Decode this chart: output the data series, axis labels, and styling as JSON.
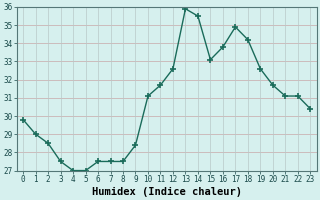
{
  "x": [
    0,
    1,
    2,
    3,
    4,
    5,
    6,
    7,
    8,
    9,
    10,
    11,
    12,
    13,
    14,
    15,
    16,
    17,
    18,
    19,
    20,
    21,
    22,
    23
  ],
  "y": [
    29.8,
    29.0,
    28.5,
    27.5,
    27.0,
    27.0,
    27.5,
    27.5,
    27.5,
    28.4,
    31.1,
    31.7,
    32.6,
    35.9,
    35.5,
    33.1,
    33.8,
    34.9,
    34.2,
    32.6,
    31.7,
    31.1,
    31.1,
    30.4
  ],
  "line_color": "#1a6b5a",
  "marker": "+",
  "markersize": 4,
  "bg_color": "#d6f0ee",
  "grid_color_h": "#c8a8a8",
  "grid_color_v": "#b8c8c8",
  "xlabel": "Humidex (Indice chaleur)",
  "ylim": [
    27,
    36
  ],
  "yticks": [
    27,
    28,
    29,
    30,
    31,
    32,
    33,
    34,
    35,
    36
  ],
  "xticks": [
    0,
    1,
    2,
    3,
    4,
    5,
    6,
    7,
    8,
    9,
    10,
    11,
    12,
    13,
    14,
    15,
    16,
    17,
    18,
    19,
    20,
    21,
    22,
    23
  ],
  "tick_label_fontsize": 5.5,
  "xlabel_fontsize": 7.5,
  "linewidth": 1.0,
  "markerwidth": 1.2
}
